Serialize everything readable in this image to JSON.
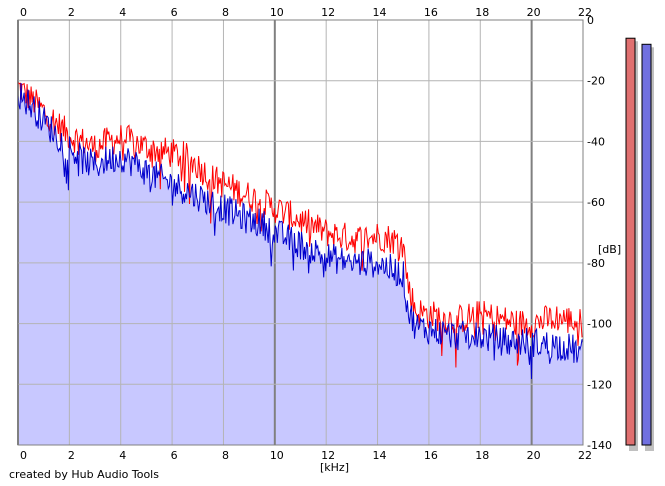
{
  "credit": "created by Hub Audio Tools",
  "chart_data": {
    "type": "area",
    "title": "",
    "xlabel": "[kHz]",
    "ylabel": "[dB]",
    "xlim": [
      0,
      22
    ],
    "ylim": [
      -140,
      0
    ],
    "x_ticks": [
      0,
      2,
      4,
      6,
      8,
      10,
      12,
      14,
      16,
      18,
      20,
      22
    ],
    "y_ticks": [
      0,
      -20,
      -40,
      -60,
      -80,
      -100,
      -120,
      -140
    ],
    "grid": true,
    "fill_series": "Blue",
    "x": [
      0,
      0.5,
      1,
      1.5,
      2,
      2.5,
      3,
      3.5,
      4,
      4.5,
      5,
      5.5,
      6,
      6.5,
      7,
      7.5,
      8,
      8.5,
      9,
      9.5,
      10,
      10.5,
      11,
      11.5,
      12,
      12.5,
      13,
      13.5,
      14,
      14.5,
      15,
      15.2,
      15.5,
      16,
      16.5,
      17,
      17.5,
      18,
      18.5,
      19,
      19.5,
      20,
      20.5,
      21,
      21.5,
      22
    ],
    "series": [
      {
        "color": "#ff0000",
        "values": [
          -22,
          -26,
          -30,
          -34,
          -38,
          -40,
          -42,
          -40,
          -39,
          -40,
          -42,
          -43,
          -44,
          -45,
          -48,
          -52,
          -54,
          -56,
          -58,
          -60,
          -62,
          -64,
          -66,
          -68,
          -70,
          -71,
          -72,
          -72,
          -71,
          -72,
          -74,
          -88,
          -96,
          -97,
          -98,
          -99,
          -98,
          -97,
          -98,
          -99,
          -100,
          -100,
          -99,
          -98,
          -99,
          -100
        ]
      },
      {
        "color": "#0000cc",
        "values": [
          -24,
          -28,
          -33,
          -38,
          -42,
          -46,
          -48,
          -46,
          -45,
          -47,
          -50,
          -52,
          -54,
          -56,
          -58,
          -60,
          -62,
          -64,
          -66,
          -67,
          -70,
          -72,
          -74,
          -76,
          -78,
          -79,
          -80,
          -80,
          -80,
          -82,
          -84,
          -96,
          -101,
          -102,
          -103,
          -104,
          -104,
          -104,
          -105,
          -106,
          -106,
          -106,
          -107,
          -107,
          -108,
          -110
        ]
      }
    ],
    "meters": {
      "range_db": [
        -140,
        0
      ],
      "levels": [
        {
          "color": "#e07070",
          "value": -6
        },
        {
          "color": "#7070e0",
          "value": -8
        }
      ]
    }
  }
}
